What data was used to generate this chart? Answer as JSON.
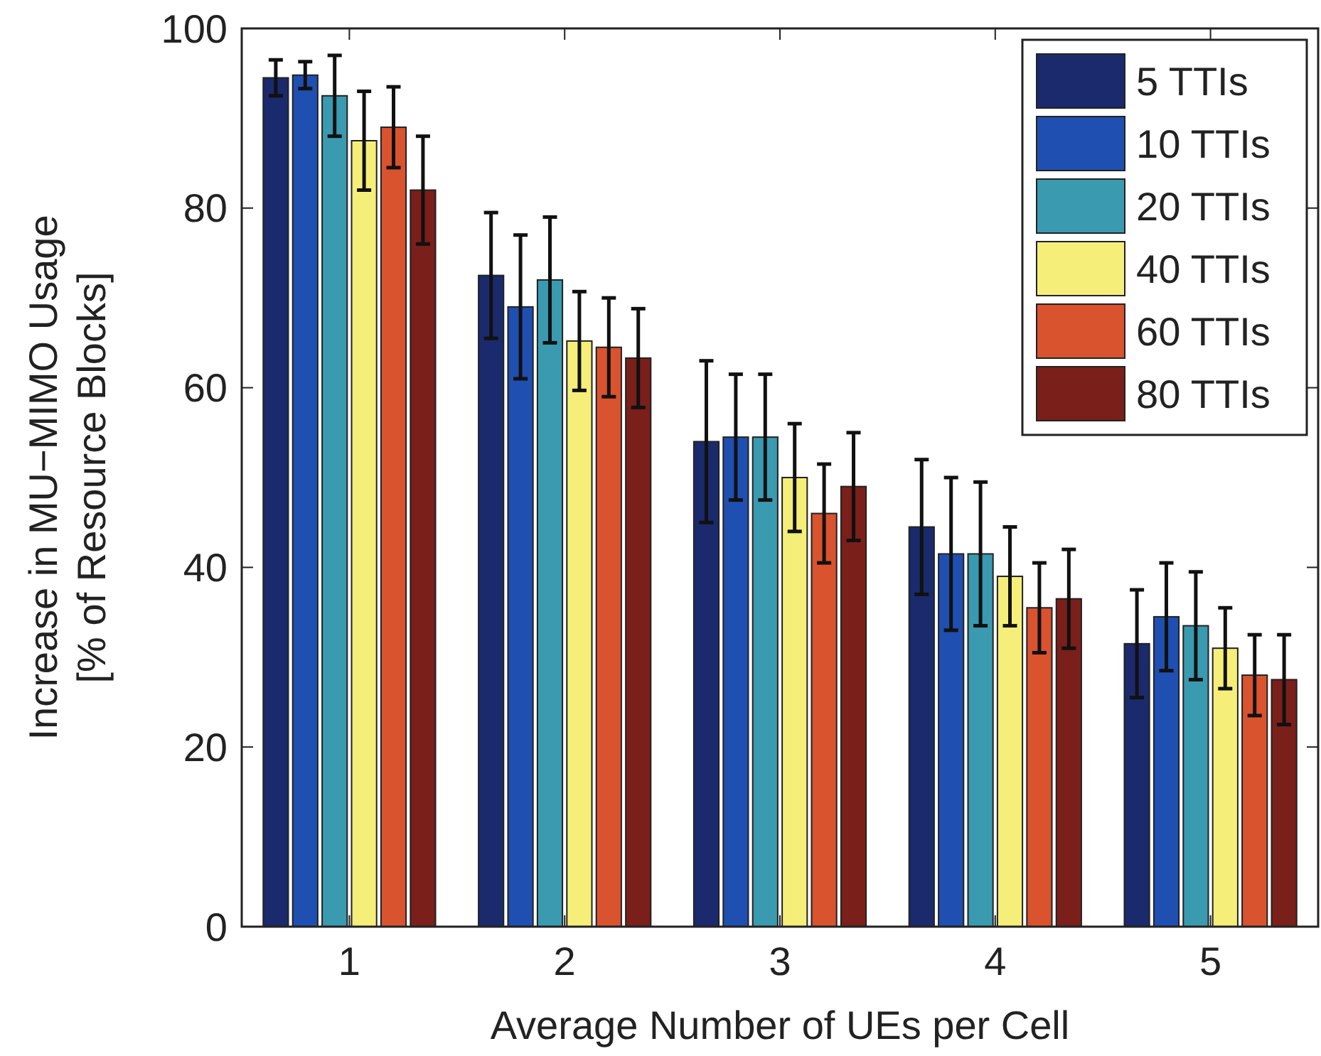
{
  "chart_data": {
    "type": "bar",
    "xlabel": "Average Number of UEs per Cell",
    "ylabel": "Increase in MU−MIMO Usage\n[% of Resource Blocks]",
    "categories": [
      "1",
      "2",
      "3",
      "4",
      "5"
    ],
    "ylim": [
      0,
      100
    ],
    "yticks": [
      0,
      20,
      40,
      60,
      80,
      100
    ],
    "legend": "top right",
    "grid": false,
    "series": [
      {
        "name": "5 TTIs",
        "color": "#1a2a6c",
        "values": [
          94.5,
          72.5,
          54,
          44.5,
          31.5
        ],
        "errors": [
          2,
          7,
          9,
          7.5,
          6
        ]
      },
      {
        "name": "10 TTIs",
        "color": "#1f4fb0",
        "values": [
          94.8,
          69,
          54.5,
          41.5,
          34.5
        ],
        "errors": [
          1.5,
          8,
          7,
          8.5,
          6
        ]
      },
      {
        "name": "20 TTIs",
        "color": "#3a9ab0",
        "values": [
          92.5,
          72,
          54.5,
          41.5,
          33.5
        ],
        "errors": [
          4.5,
          7,
          7,
          8,
          6
        ]
      },
      {
        "name": "40 TTIs",
        "color": "#f5ef7a",
        "values": [
          87.5,
          65.2,
          50,
          39,
          31
        ],
        "errors": [
          5.5,
          5.5,
          6,
          5.5,
          4.5
        ]
      },
      {
        "name": "60 TTIs",
        "color": "#d9532f",
        "values": [
          89,
          64.5,
          46,
          35.5,
          28
        ],
        "errors": [
          4.5,
          5.5,
          5.5,
          5,
          4.5
        ]
      },
      {
        "name": "80 TTIs",
        "color": "#7a1f1a",
        "values": [
          82,
          63.3,
          49,
          36.5,
          27.5
        ],
        "errors": [
          6,
          5.5,
          6,
          5.5,
          5
        ]
      }
    ]
  }
}
